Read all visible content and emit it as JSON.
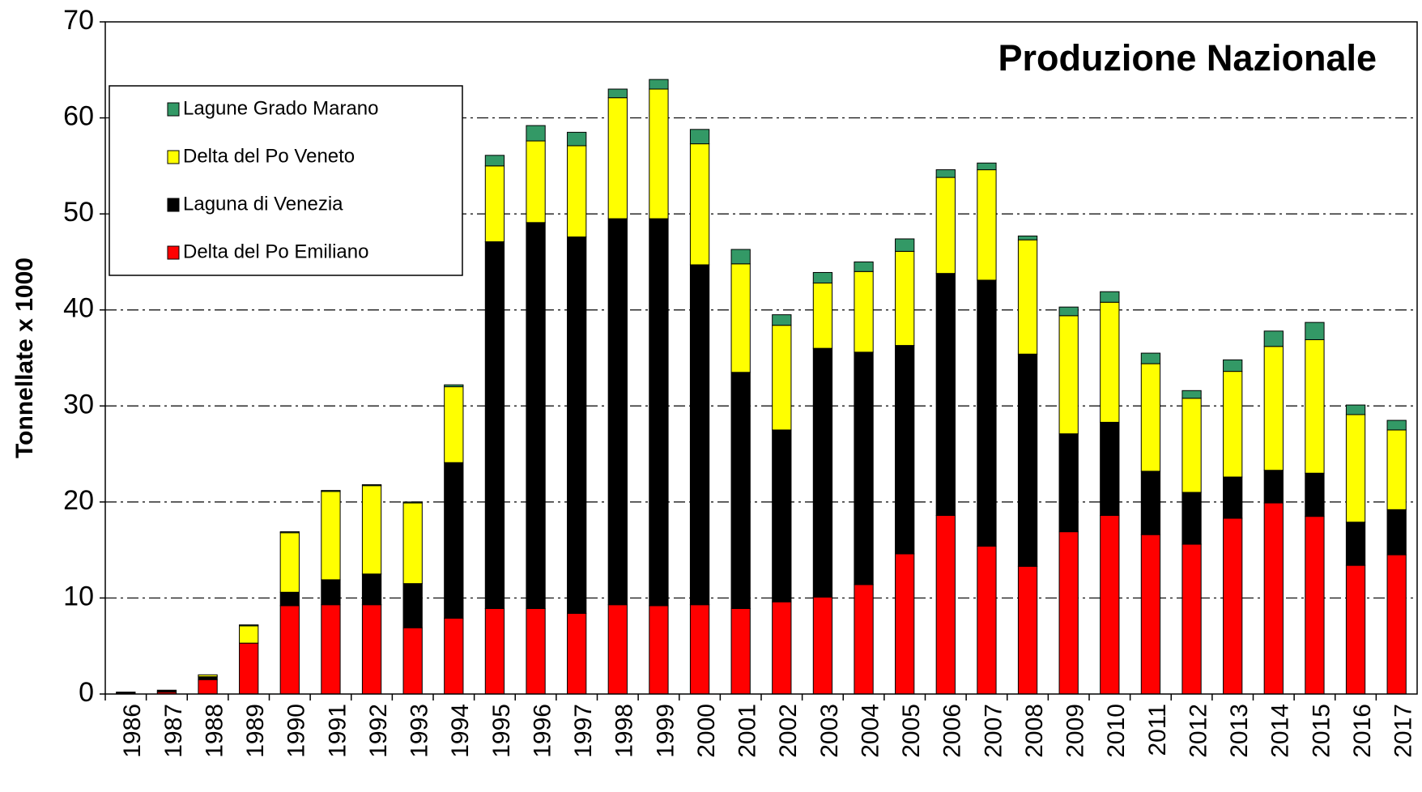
{
  "chart_data": {
    "type": "stacked_bar",
    "title": "Produzione Nazionale",
    "y_label": "Tonnellate  x 1000",
    "categories": [
      "1986",
      "1987",
      "1988",
      "1989",
      "1990",
      "1991",
      "1992",
      "1993",
      "1994",
      "1995",
      "1996",
      "1997",
      "1998",
      "1999",
      "2000",
      "2001",
      "2002",
      "2003",
      "2004",
      "2005",
      "2006",
      "2007",
      "2008",
      "2009",
      "2010",
      "2011",
      "2012",
      "2013",
      "2014",
      "2015",
      "2016",
      "2017"
    ],
    "series": [
      {
        "name": "Delta del Po Emiliano",
        "color": "#ff0000",
        "values": [
          0.1,
          0.2,
          1.5,
          5.3,
          9.2,
          9.3,
          9.3,
          6.9,
          7.9,
          8.9,
          8.9,
          8.4,
          9.3,
          9.2,
          9.3,
          8.9,
          9.6,
          10.1,
          11.4,
          14.6,
          18.6,
          15.4,
          13.3,
          16.9,
          18.6,
          16.6,
          15.6,
          18.3,
          19.9,
          18.5,
          13.4,
          14.5
        ]
      },
      {
        "name": "Laguna di Venezia",
        "color": "#000000",
        "values": [
          0.1,
          0.2,
          0.3,
          0,
          1.4,
          2.6,
          3.2,
          4.6,
          16.2,
          38.2,
          40.2,
          39.2,
          40.2,
          40.3,
          35.4,
          24.6,
          17.9,
          25.9,
          24.2,
          21.7,
          25.2,
          27.7,
          22.1,
          10.2,
          9.7,
          6.6,
          5.4,
          4.3,
          3.4,
          4.5,
          4.5,
          4.7
        ]
      },
      {
        "name": "Delta del Po Veneto",
        "color": "#ffff00",
        "values": [
          0,
          0,
          0.2,
          1.8,
          6.2,
          9.2,
          9.2,
          8.4,
          7.9,
          7.9,
          8.5,
          9.5,
          12.6,
          13.5,
          12.6,
          11.3,
          10.9,
          6.8,
          8.4,
          9.8,
          10.0,
          11.5,
          11.9,
          12.3,
          12.5,
          11.2,
          9.8,
          11.0,
          12.9,
          13.9,
          11.2,
          8.3
        ]
      },
      {
        "name": "Lagune Grado Marano",
        "color": "#339966",
        "values": [
          0,
          0,
          0,
          0.1,
          0.1,
          0.1,
          0.1,
          0.1,
          0.2,
          1.1,
          1.6,
          1.4,
          0.9,
          1.0,
          1.5,
          1.5,
          1.1,
          1.1,
          1.0,
          1.3,
          0.8,
          0.7,
          0.4,
          0.9,
          1.1,
          1.1,
          0.8,
          1.2,
          1.6,
          1.8,
          1.0,
          1.0
        ]
      }
    ],
    "ylim": [
      0,
      70
    ],
    "yticks": [
      0,
      10,
      20,
      30,
      40,
      50,
      60,
      70
    ],
    "grid": true,
    "legend": "upper left"
  }
}
